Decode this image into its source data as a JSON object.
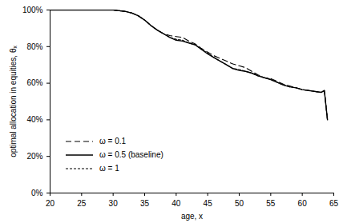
{
  "chart_data": {
    "type": "line",
    "x_label": "age, x",
    "y_label": "optimal allocation in equities, θₓ",
    "x": [
      20,
      21,
      22,
      23,
      24,
      25,
      26,
      27,
      28,
      29,
      30,
      31,
      32,
      33,
      34,
      35,
      36,
      37,
      38,
      39,
      40,
      41,
      42,
      43,
      44,
      45,
      46,
      47,
      48,
      49,
      50,
      51,
      52,
      53,
      54,
      55,
      56,
      57,
      58,
      59,
      60,
      61,
      62,
      63,
      63.5,
      64
    ],
    "series": [
      {
        "name": "ω = 0.1",
        "color": "#000000",
        "line_style": "dashed",
        "values": [
          100,
          100,
          100,
          100,
          100,
          100,
          100,
          100,
          100,
          100,
          100,
          99.6,
          99.2,
          98.3,
          96.8,
          94.5,
          91.5,
          89,
          87,
          86,
          85.5,
          85,
          83,
          81.5,
          79,
          77,
          75,
          73.5,
          72,
          70.5,
          69.5,
          68.5,
          66.5,
          64.5,
          63,
          62.5,
          61,
          59.5,
          58.5,
          57.5,
          56.5,
          56,
          55.5,
          55,
          56,
          40
        ]
      },
      {
        "name": "ω = 0.5 (baseline)",
        "color": "#000000",
        "line_style": "solid",
        "values": [
          100,
          100,
          100,
          100,
          100,
          100,
          100,
          100,
          100,
          100,
          100,
          99.6,
          99.2,
          98.3,
          96.8,
          94.5,
          91.5,
          89,
          87,
          85,
          83.5,
          83,
          82,
          81,
          78.5,
          76,
          74,
          72,
          70,
          68,
          67,
          66.5,
          65.5,
          64,
          63,
          62,
          60.5,
          59,
          58,
          57.5,
          56.5,
          56,
          55.5,
          55,
          56,
          40
        ]
      },
      {
        "name": "ω = 1",
        "color": "#000000",
        "line_style": "dotted",
        "values": [
          100,
          100,
          100,
          100,
          100,
          100,
          100,
          100,
          100,
          100,
          100,
          99.6,
          99.2,
          98.3,
          96.8,
          94.5,
          91.5,
          89,
          87,
          85,
          84,
          83.5,
          82,
          81,
          78.5,
          76.5,
          74,
          72,
          70,
          68,
          67.5,
          66.5,
          65.5,
          64,
          63,
          62,
          60.5,
          59,
          58,
          57.5,
          56.5,
          56,
          55.5,
          55,
          56,
          40
        ]
      }
    ],
    "xlim": [
      20,
      65
    ],
    "xticks": [
      20,
      25,
      30,
      35,
      40,
      45,
      50,
      55,
      60,
      65
    ],
    "ylim": [
      0,
      100
    ],
    "yticks": [
      {
        "value": 0,
        "label": "0%"
      },
      {
        "value": 20,
        "label": "20%"
      },
      {
        "value": 40,
        "label": "40%"
      },
      {
        "value": 60,
        "label": "60%"
      },
      {
        "value": 80,
        "label": "80%"
      },
      {
        "value": 100,
        "label": "100%"
      }
    ],
    "grid": false,
    "legend": "bottom-left"
  }
}
